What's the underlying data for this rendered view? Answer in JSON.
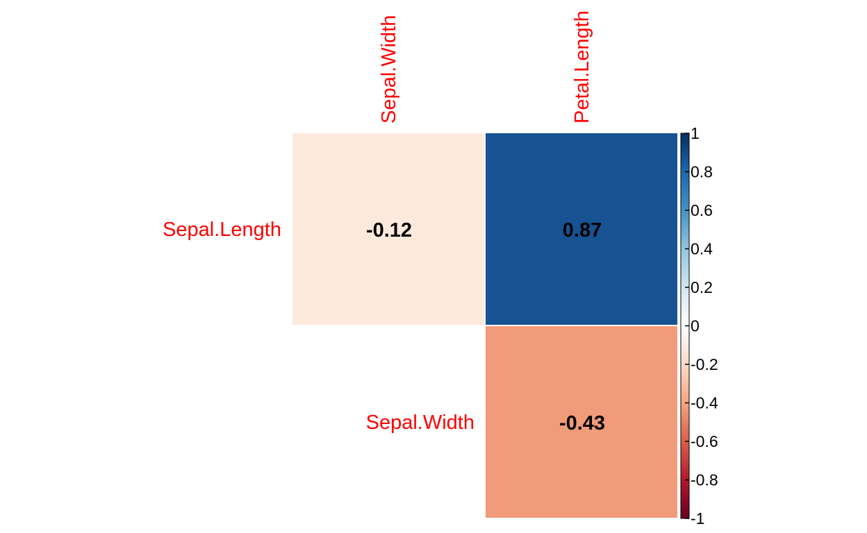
{
  "chart_data": {
    "type": "heatmap",
    "title": "",
    "layout": "upper-triangle",
    "row_labels": [
      "Sepal.Length",
      "Sepal.Width"
    ],
    "col_labels": [
      "Sepal.Width",
      "Petal.Length"
    ],
    "cells": [
      {
        "row": "Sepal.Length",
        "col": "Sepal.Width",
        "value": -0.12,
        "label": "-0.12"
      },
      {
        "row": "Sepal.Length",
        "col": "Petal.Length",
        "value": 0.87,
        "label": "0.87"
      },
      {
        "row": "Sepal.Width",
        "col": "Petal.Length",
        "value": -0.43,
        "label": "-0.43"
      }
    ],
    "colorbar": {
      "range": [
        -1,
        1
      ],
      "ticks": [
        1,
        0.8,
        0.6,
        0.4,
        0.2,
        0,
        -0.2,
        -0.4,
        -0.6,
        -0.8,
        -1
      ],
      "tick_labels": [
        "1",
        "0.8",
        "0.6",
        "0.4",
        "0.2",
        "0",
        "-0.2",
        "-0.4",
        "-0.6",
        "-0.8",
        "-1"
      ],
      "colors": [
        "#67001F",
        "#B2182B",
        "#D6604D",
        "#F4A582",
        "#FDDBC7",
        "#FFFFFF",
        "#D1E5F0",
        "#92C5DE",
        "#4393C3",
        "#2166AC",
        "#053061"
      ]
    },
    "label_color": "#FF0000",
    "value_label_color": "#000000"
  }
}
